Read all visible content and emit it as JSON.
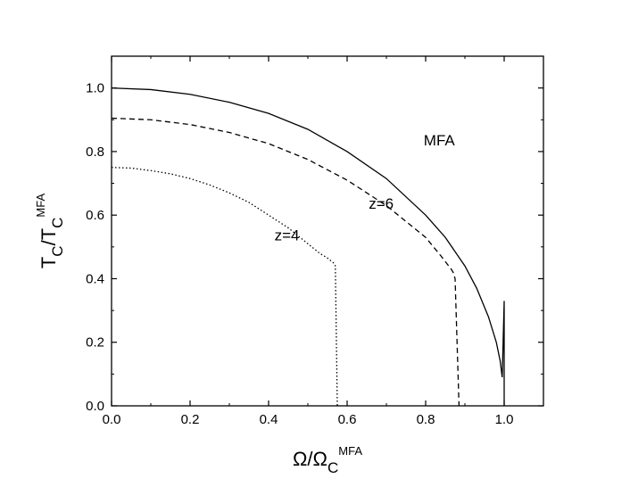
{
  "chart_data": {
    "type": "line",
    "title": "",
    "xlim": [
      0.0,
      1.1
    ],
    "ylim": [
      0.0,
      1.1
    ],
    "x_ticks": [
      "0.0",
      "0.2",
      "0.4",
      "0.6",
      "0.8",
      "1.0"
    ],
    "y_ticks": [
      "0.0",
      "0.2",
      "0.4",
      "0.6",
      "0.8",
      "1.0"
    ],
    "x_tick_values": [
      0.0,
      0.2,
      0.4,
      0.6,
      0.8,
      1.0
    ],
    "y_tick_values": [
      0.0,
      0.2,
      0.4,
      0.6,
      0.8,
      1.0
    ],
    "xlabel": {
      "main": "Ω/Ω",
      "sub": "C",
      "sup": "MFA"
    },
    "ylabel": {
      "main": "T",
      "sub1": "C",
      "mid": "/T",
      "sub2": "C",
      "sup": "MFA"
    },
    "grid": false,
    "legend": "none",
    "series": [
      {
        "label": "MFA",
        "style": "solid",
        "x": [
          0.0,
          0.1,
          0.2,
          0.3,
          0.4,
          0.5,
          0.6,
          0.7,
          0.8,
          0.85,
          0.9,
          0.93,
          0.96,
          0.98,
          0.99,
          0.995,
          1.0,
          1.0
        ],
        "y": [
          1.0,
          0.995,
          0.98,
          0.955,
          0.92,
          0.87,
          0.8,
          0.715,
          0.6,
          0.53,
          0.44,
          0.37,
          0.28,
          0.2,
          0.14,
          0.09,
          0.33,
          0.0
        ]
      },
      {
        "label": "z=6",
        "style": "dashed",
        "x": [
          0.0,
          0.1,
          0.2,
          0.3,
          0.4,
          0.5,
          0.6,
          0.7,
          0.8,
          0.84,
          0.865,
          0.87,
          0.875,
          0.885
        ],
        "y": [
          0.905,
          0.9,
          0.885,
          0.86,
          0.825,
          0.775,
          0.71,
          0.63,
          0.53,
          0.47,
          0.43,
          0.42,
          0.4,
          0.0
        ]
      },
      {
        "label": "z=4",
        "style": "dotted",
        "x": [
          0.0,
          0.05,
          0.1,
          0.15,
          0.2,
          0.25,
          0.3,
          0.35,
          0.4,
          0.45,
          0.5,
          0.53,
          0.55,
          0.565,
          0.57,
          0.575
        ],
        "y": [
          0.75,
          0.748,
          0.74,
          0.73,
          0.715,
          0.695,
          0.67,
          0.64,
          0.6,
          0.56,
          0.51,
          0.48,
          0.465,
          0.45,
          0.44,
          0.0
        ]
      }
    ],
    "annotations": [
      {
        "text": "MFA",
        "x": 0.795,
        "y": 0.82
      },
      {
        "text": "z=6",
        "x": 0.655,
        "y": 0.62
      },
      {
        "text": "z=4",
        "x": 0.415,
        "y": 0.52
      }
    ]
  }
}
